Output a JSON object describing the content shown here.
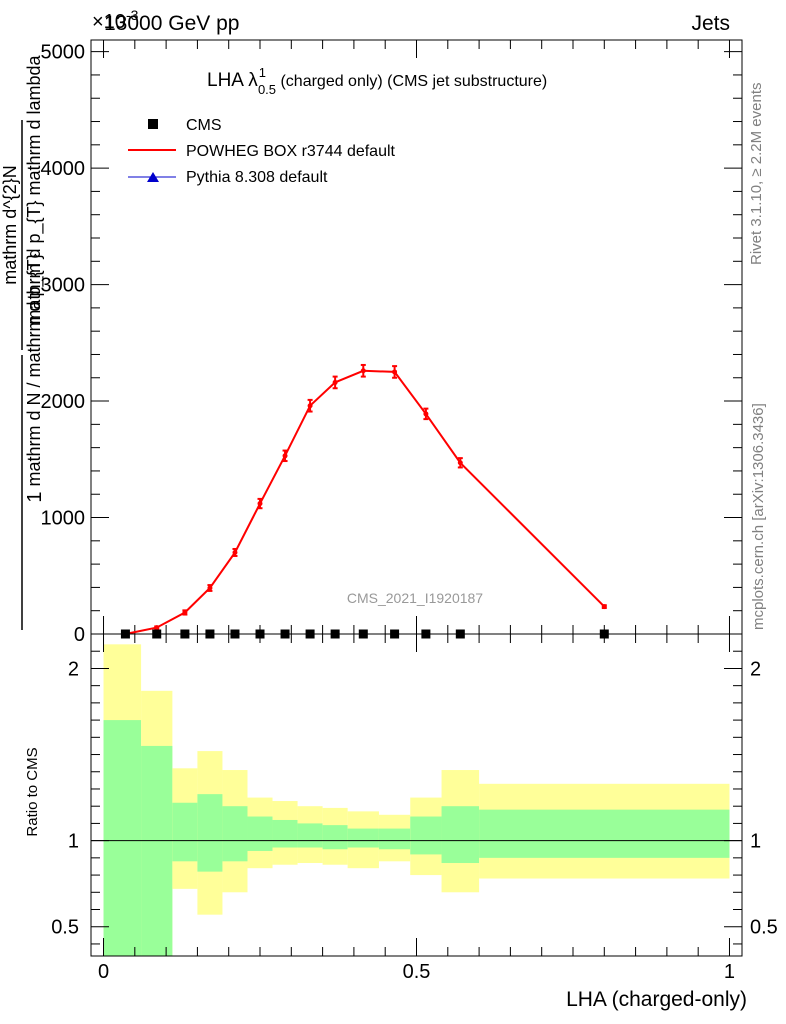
{
  "header": {
    "left": "13000 GeV pp",
    "right": "Jets",
    "exponent": "×10",
    "exponent_power": "-3"
  },
  "side_labels": {
    "rivet": "Rivet 3.1.10, ≥ 2.2M events",
    "mcplots": "mcplots.cern.ch [arXiv:1306.3436]"
  },
  "watermark": "CMS_2021_I1920187",
  "colors": {
    "powheg": "#ff0000",
    "pythia": "#0000cc",
    "cms": "#000000",
    "band_inner": "#99ff99",
    "band_outer": "#ffff99"
  },
  "chart_data": [
    {
      "type": "line",
      "panel": "main",
      "title": {
        "base": "LHA λ",
        "sup": "1",
        "sub": "0.5",
        "rest": " (charged only) (CMS jet substructure)"
      },
      "ylabel": {
        "frac1_num": "1",
        "frac1_den": "mathrm d N / mathrm d p_{T}",
        "frac2_num": "mathrm d^{2}N",
        "frac2_den": "mathrm d p_{T} mathrm d lambda"
      },
      "xlim": [
        -0.02,
        1.02
      ],
      "ylim": [
        0,
        5100
      ],
      "yticks": [
        0,
        1000,
        2000,
        3000,
        4000,
        5000
      ],
      "ytick_labels": [
        "0",
        "1000",
        "2000",
        "3000",
        "4000",
        "5000"
      ],
      "legend": [
        "CMS",
        "POWHEG BOX r3744 default",
        "Pythia 8.308 default"
      ],
      "series": [
        {
          "name": "POWHEG BOX r3744 default",
          "x": [
            0.035,
            0.085,
            0.13,
            0.17,
            0.21,
            0.25,
            0.29,
            0.33,
            0.37,
            0.415,
            0.465,
            0.515,
            0.57,
            0.8
          ],
          "y": [
            0,
            55,
            185,
            395,
            700,
            1120,
            1530,
            1960,
            2160,
            2260,
            2250,
            1890,
            1470,
            235
          ],
          "err": [
            8,
            10,
            18,
            25,
            30,
            40,
            45,
            50,
            50,
            50,
            50,
            45,
            40,
            12
          ]
        },
        {
          "name": "CMS",
          "x": [
            0.035,
            0.085,
            0.13,
            0.17,
            0.21,
            0.25,
            0.29,
            0.33,
            0.37,
            0.415,
            0.465,
            0.515,
            0.57,
            0.8
          ],
          "y": [
            0,
            0,
            0,
            0,
            0,
            0,
            0,
            0,
            0,
            0,
            0,
            0,
            0,
            0
          ]
        }
      ]
    },
    {
      "type": "area",
      "panel": "ratio",
      "ylabel": "Ratio to CMS",
      "xlabel": "LHA (charged-only)",
      "xlim": [
        -0.02,
        1.02
      ],
      "ylim": [
        0.33,
        2.2
      ],
      "yticks": [
        0.5,
        1,
        2
      ],
      "ytick_labels": [
        "0.5",
        "1",
        "2"
      ],
      "xticks": [
        0,
        0.5,
        1
      ],
      "xtick_labels": [
        "0",
        "0.5",
        "1"
      ],
      "bin_edges": [
        0,
        0.06,
        0.11,
        0.15,
        0.19,
        0.23,
        0.27,
        0.31,
        0.35,
        0.39,
        0.44,
        0.49,
        0.54,
        0.6,
        1.0
      ],
      "inner_band": {
        "lo": [
          0.33,
          0.33,
          0.88,
          0.82,
          0.88,
          0.94,
          0.96,
          0.96,
          0.95,
          0.96,
          0.95,
          0.92,
          0.87,
          0.9
        ],
        "hi": [
          1.7,
          1.55,
          1.22,
          1.27,
          1.2,
          1.14,
          1.12,
          1.1,
          1.09,
          1.07,
          1.07,
          1.14,
          1.2,
          1.18
        ]
      },
      "outer_band": {
        "lo": [
          0.33,
          0.33,
          0.72,
          0.57,
          0.7,
          0.84,
          0.86,
          0.87,
          0.86,
          0.84,
          0.88,
          0.8,
          0.7,
          0.78
        ],
        "hi": [
          2.14,
          1.87,
          1.42,
          1.52,
          1.41,
          1.25,
          1.23,
          1.2,
          1.19,
          1.17,
          1.15,
          1.25,
          1.41,
          1.33
        ]
      }
    }
  ]
}
